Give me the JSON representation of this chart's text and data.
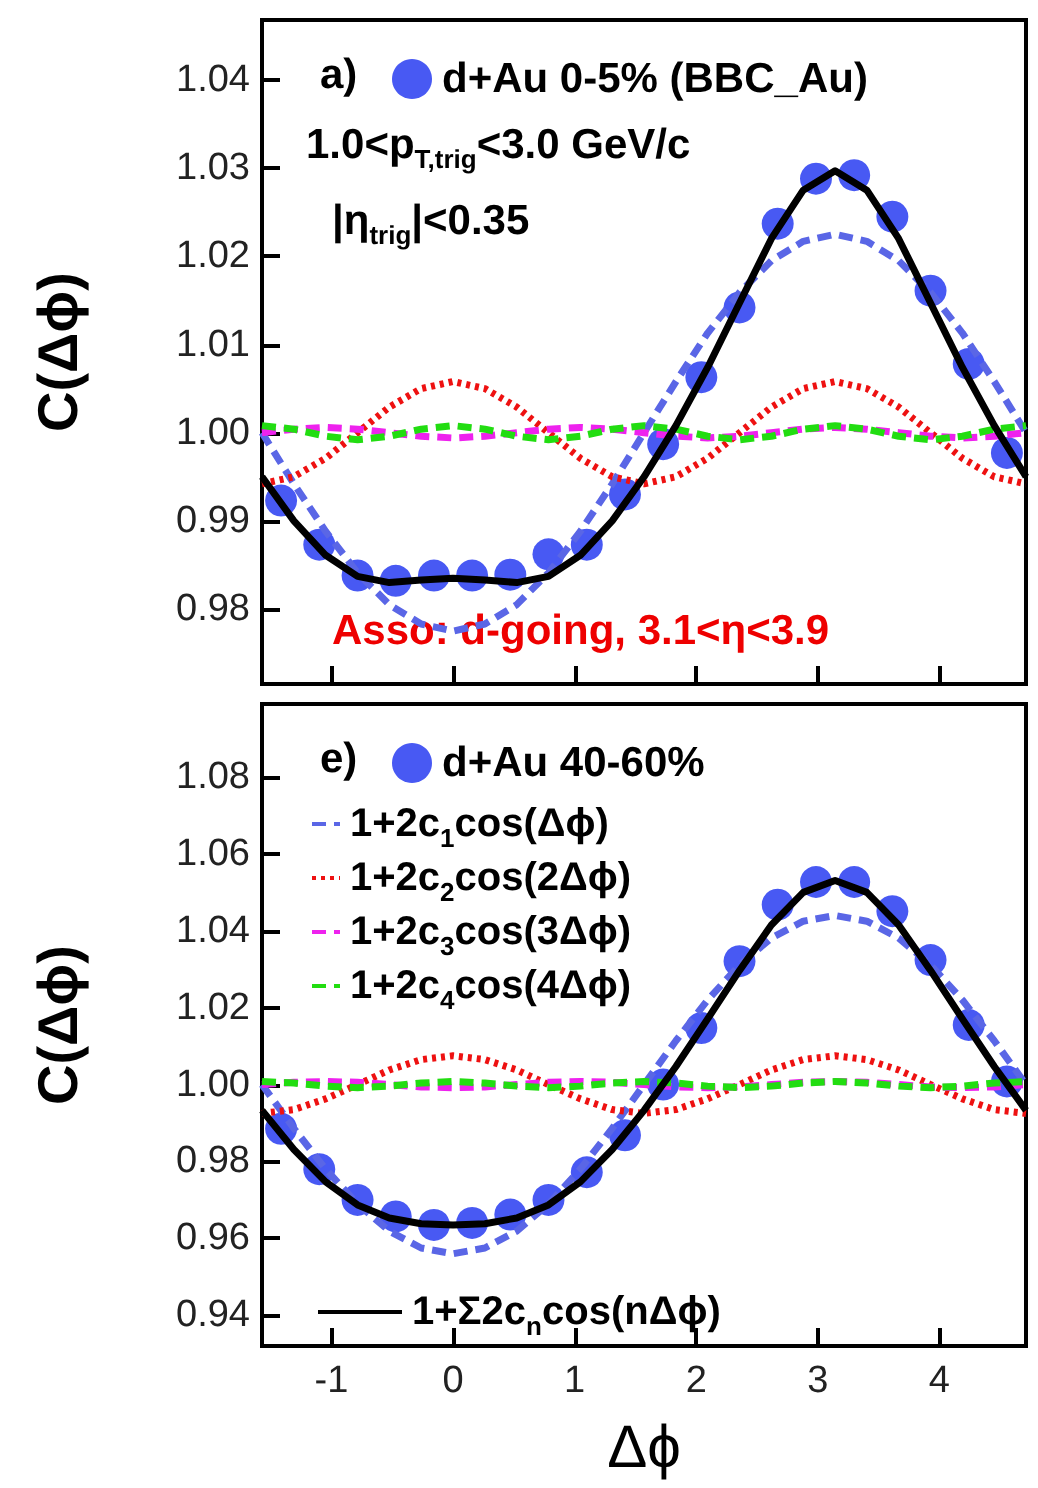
{
  "chart_data": [
    {
      "type": "line",
      "ylabel": "C(Δϕ)",
      "annotations": [
        "a)",
        "1.0<p$_{T,trig}$<3.0 GeV/c",
        "|η$_{trig}$|<0.35",
        "Asso: d-going, 3.1<η<3.9"
      ],
      "xlim": [
        -1.571,
        4.712
      ],
      "xticks": [
        -1,
        0,
        1,
        2,
        3,
        4
      ],
      "ylim": [
        0.9715,
        1.0468
      ],
      "yticks": [
        {
          "value": 0.98,
          "label": "0.98"
        },
        {
          "value": 0.99,
          "label": "0.99"
        },
        {
          "value": 1.0,
          "label": "1.00"
        },
        {
          "value": 1.01,
          "label": "1.01"
        },
        {
          "value": 1.02,
          "label": "1.02"
        },
        {
          "value": 1.03,
          "label": "1.03"
        },
        {
          "value": 1.04,
          "label": "1.04"
        }
      ],
      "tick_labels": "y",
      "legend": "top left",
      "grid": false,
      "series": [
        {
          "type": "scatter",
          "name": "d+Au 0-5% (BBC_Au)",
          "color": "#1a2ff0",
          "marker": "circle",
          "x": [
            -1.414,
            -1.1,
            -0.785,
            -0.471,
            -0.157,
            0.157,
            0.471,
            0.785,
            1.1,
            1.414,
            1.728,
            2.042,
            2.356,
            2.67,
            2.985,
            3.299,
            3.613,
            3.927,
            4.241,
            4.555
          ],
          "values": [
            0.9923,
            0.9873,
            0.9838,
            0.9832,
            0.9838,
            0.9838,
            0.9839,
            0.9862,
            0.9873,
            0.993,
            0.9987,
            1.0063,
            1.0142,
            1.0237,
            1.0288,
            1.0292,
            1.0245,
            1.0161,
            1.0078,
            0.9977
          ]
        },
        {
          "color": "#5a66e6",
          "marker": "none",
          "line_style": "dashed",
          "x": [
            -1.571,
            -1.309,
            -1.047,
            -0.785,
            -0.524,
            -0.262,
            0,
            0.262,
            0.524,
            0.785,
            1.047,
            1.309,
            1.571,
            1.833,
            2.094,
            2.356,
            2.618,
            2.88,
            3.142,
            3.403,
            3.665,
            3.927,
            4.189,
            4.451,
            4.712
          ],
          "values": [
            1.0,
            0.9942,
            0.9888,
            0.9841,
            0.9805,
            0.9783,
            0.9775,
            0.9783,
            0.9805,
            0.9841,
            0.9888,
            0.9942,
            1.0,
            1.0058,
            1.0113,
            1.0159,
            1.0195,
            1.0217,
            1.0225,
            1.0217,
            1.0195,
            1.0159,
            1.0113,
            1.0058,
            1.0
          ]
        },
        {
          "color": "#ee1111",
          "marker": "none",
          "line_style": "dotted",
          "x": [
            -1.571,
            -1.309,
            -1.047,
            -0.785,
            -0.524,
            -0.262,
            0,
            0.262,
            0.524,
            0.785,
            1.047,
            1.309,
            1.571,
            1.833,
            2.094,
            2.356,
            2.618,
            2.88,
            3.142,
            3.403,
            3.665,
            3.927,
            4.189,
            4.451,
            4.712
          ],
          "values": [
            0.9942,
            0.995,
            0.9971,
            1.0,
            1.0029,
            1.005,
            1.0058,
            1.005,
            1.0029,
            1.0,
            0.9971,
            0.995,
            0.9942,
            0.995,
            0.9971,
            1.0,
            1.0029,
            1.005,
            1.0058,
            1.005,
            1.0029,
            1.0,
            0.9971,
            0.995,
            0.9942
          ]
        },
        {
          "color": "#ee22ee",
          "marker": "none",
          "line_style": "dashed",
          "x": [
            -1.571,
            -1.309,
            -1.047,
            -0.785,
            -0.524,
            -0.262,
            0,
            0.262,
            0.524,
            0.785,
            1.047,
            1.309,
            1.571,
            1.833,
            2.094,
            2.356,
            2.618,
            2.88,
            3.142,
            3.403,
            3.665,
            3.927,
            4.189,
            4.451,
            4.712
          ],
          "values": [
            1.0,
            1.0004,
            1.0006,
            1.0004,
            1.0,
            0.9996,
            0.9994,
            0.9996,
            1.0,
            1.0004,
            1.0006,
            1.0004,
            1.0,
            0.9996,
            0.9994,
            0.9996,
            1.0,
            1.0004,
            1.0006,
            1.0004,
            1.0,
            0.9996,
            0.9994,
            0.9996,
            1.0
          ]
        },
        {
          "color": "#22dd11",
          "marker": "none",
          "line_style": "dashed",
          "x": [
            -1.571,
            -1.309,
            -1.047,
            -0.785,
            -0.524,
            -0.262,
            0,
            0.262,
            0.524,
            0.785,
            1.047,
            1.309,
            1.571,
            1.833,
            2.094,
            2.356,
            2.618,
            2.88,
            3.142,
            3.403,
            3.665,
            3.927,
            4.189,
            4.451,
            4.712
          ],
          "values": [
            1.0008,
            1.0004,
            0.9996,
            0.9992,
            0.9996,
            1.0004,
            1.0008,
            1.0004,
            0.9996,
            0.9992,
            0.9996,
            1.0004,
            1.0008,
            1.0004,
            0.9996,
            0.9992,
            0.9996,
            1.0004,
            1.0008,
            1.0004,
            0.9996,
            0.9992,
            0.9996,
            1.0004,
            1.0008
          ]
        },
        {
          "color": "#000000",
          "marker": "none",
          "line_style": "solid",
          "x": [
            -1.571,
            -1.309,
            -1.047,
            -0.785,
            -0.524,
            -0.262,
            0,
            0.262,
            0.524,
            0.785,
            1.047,
            1.309,
            1.571,
            1.833,
            2.094,
            2.356,
            2.618,
            2.88,
            3.142,
            3.403,
            3.665,
            3.927,
            4.189,
            4.451,
            4.712
          ],
          "values": [
            0.995,
            0.99,
            0.9861,
            0.9837,
            0.983,
            0.9833,
            0.9835,
            0.9833,
            0.983,
            0.9837,
            0.9861,
            0.99,
            0.995,
            1.0008,
            1.0074,
            1.0147,
            1.022,
            1.0275,
            1.0297,
            1.0275,
            1.022,
            1.0147,
            1.0074,
            1.0008,
            0.995
          ]
        }
      ]
    },
    {
      "type": "line",
      "xlabel": "Δϕ",
      "ylabel": "C(Δϕ)",
      "annotations": [
        "e)"
      ],
      "xlim": [
        -1.571,
        4.712
      ],
      "xticks": [
        -1,
        0,
        1,
        2,
        3,
        4
      ],
      "ylim": [
        0.932,
        1.099
      ],
      "yticks": [
        {
          "value": 0.94,
          "label": "0.94"
        },
        {
          "value": 0.96,
          "label": "0.96"
        },
        {
          "value": 0.98,
          "label": "0.98"
        },
        {
          "value": 1.0,
          "label": "1.00"
        },
        {
          "value": 1.02,
          "label": "1.02"
        },
        {
          "value": 1.04,
          "label": "1.04"
        },
        {
          "value": 1.06,
          "label": "1.06"
        },
        {
          "value": 1.08,
          "label": "1.08"
        }
      ],
      "legend": "left",
      "grid": false,
      "series": [
        {
          "type": "scatter",
          "name": "d+Au 40-60%",
          "color": "#1a2ff0",
          "marker": "circle",
          "x": [
            -1.414,
            -1.1,
            -0.785,
            -0.471,
            -0.157,
            0.157,
            0.471,
            0.785,
            1.1,
            1.414,
            1.728,
            2.042,
            2.356,
            2.67,
            2.985,
            3.299,
            3.613,
            3.927,
            4.241,
            4.555
          ],
          "values": [
            0.9885,
            0.978,
            0.97,
            0.9657,
            0.9635,
            0.964,
            0.9662,
            0.97,
            0.9772,
            0.9868,
            1.0,
            1.0147,
            1.0321,
            1.0468,
            1.0527,
            1.0527,
            1.0451,
            1.0324,
            1.0155,
            1.0008
          ]
        },
        {
          "name": "1+2c$_{1}$cos(Δϕ)",
          "color": "#5a66e6",
          "marker": "none",
          "line_style": "dashed",
          "x": [
            -1.571,
            -1.309,
            -1.047,
            -0.785,
            -0.524,
            -0.262,
            0,
            0.262,
            0.524,
            0.785,
            1.047,
            1.309,
            1.571,
            1.833,
            2.094,
            2.356,
            2.618,
            2.88,
            3.142,
            3.403,
            3.665,
            3.927,
            4.189,
            4.451,
            4.712
          ],
          "values": [
            1.0,
            0.9886,
            0.978,
            0.9689,
            0.9619,
            0.9575,
            0.956,
            0.9575,
            0.9619,
            0.9689,
            0.978,
            0.9886,
            1.0,
            1.0114,
            1.022,
            1.0311,
            1.0381,
            1.0425,
            1.044,
            1.0425,
            1.0381,
            1.0311,
            1.022,
            1.0114,
            1.0
          ]
        },
        {
          "name": "1+2c$_{2}$cos(2Δϕ)",
          "color": "#ee1111",
          "marker": "none",
          "line_style": "dotted",
          "x": [
            -1.571,
            -1.309,
            -1.047,
            -0.785,
            -0.524,
            -0.262,
            0,
            0.262,
            0.524,
            0.785,
            1.047,
            1.309,
            1.571,
            1.833,
            2.094,
            2.356,
            2.618,
            2.88,
            3.142,
            3.403,
            3.665,
            3.927,
            4.189,
            4.451,
            4.712
          ],
          "values": [
            0.9925,
            0.9935,
            0.9963,
            1.0,
            1.0038,
            1.0065,
            1.0075,
            1.0065,
            1.0038,
            1.0,
            0.9963,
            0.9935,
            0.9925,
            0.9935,
            0.9963,
            1.0,
            1.0038,
            1.0065,
            1.0075,
            1.0065,
            1.0038,
            1.0,
            0.9963,
            0.9935,
            0.9925
          ]
        },
        {
          "name": "1+2c$_{3}$cos(3Δϕ)",
          "color": "#ee22ee",
          "marker": "none",
          "line_style": "dashed",
          "x": [
            -1.571,
            -1.309,
            -1.047,
            -0.785,
            -0.524,
            -0.262,
            0,
            0.262,
            0.524,
            0.785,
            1.047,
            1.309,
            1.571,
            1.833,
            2.094,
            2.356,
            2.618,
            2.88,
            3.142,
            3.403,
            3.665,
            3.927,
            4.189,
            4.451,
            4.712
          ],
          "values": [
            1.0,
            1.0006,
            1.0008,
            1.0006,
            1.0,
            0.9994,
            0.9992,
            0.9994,
            1.0,
            1.0006,
            1.0008,
            1.0006,
            1.0,
            0.9994,
            0.9992,
            0.9994,
            1.0,
            1.0006,
            1.0008,
            1.0006,
            1.0,
            0.9994,
            0.9992,
            0.9994,
            1.0
          ]
        },
        {
          "name": "1+2c$_{4}$cos(4Δϕ)",
          "color": "#22dd11",
          "marker": "none",
          "line_style": "dashed",
          "x": [
            -1.571,
            -1.309,
            -1.047,
            -0.785,
            -0.524,
            -0.262,
            0,
            0.262,
            0.524,
            0.785,
            1.047,
            1.309,
            1.571,
            1.833,
            2.094,
            2.356,
            2.618,
            2.88,
            3.142,
            3.403,
            3.665,
            3.927,
            4.189,
            4.451,
            4.712
          ],
          "values": [
            1.0008,
            1.0004,
            0.9996,
            0.9992,
            0.9996,
            1.0004,
            1.0008,
            1.0004,
            0.9996,
            0.9992,
            0.9996,
            1.0004,
            1.0008,
            1.0004,
            0.9996,
            0.9992,
            0.9996,
            1.0004,
            1.0008,
            1.0004,
            0.9996,
            0.9992,
            0.9996,
            1.0004,
            1.0008
          ]
        },
        {
          "name": "1+Σ2c$_{n}$cos(nΔϕ)",
          "color": "#000000",
          "marker": "none",
          "line_style": "solid",
          "x": [
            -1.571,
            -1.309,
            -1.047,
            -0.785,
            -0.524,
            -0.262,
            0,
            0.262,
            0.524,
            0.785,
            1.047,
            1.309,
            1.571,
            1.833,
            2.094,
            2.356,
            2.618,
            2.88,
            3.142,
            3.403,
            3.665,
            3.927,
            4.189,
            4.451,
            4.712
          ],
          "values": [
            0.9933,
            0.9831,
            0.9747,
            0.9687,
            0.9653,
            0.9638,
            0.9635,
            0.9638,
            0.9653,
            0.9687,
            0.9747,
            0.9831,
            0.9933,
            1.0047,
            1.0171,
            1.0297,
            1.0415,
            1.05,
            1.0531,
            1.05,
            1.0415,
            1.0297,
            1.0171,
            1.0047,
            0.9933
          ]
        }
      ]
    }
  ]
}
